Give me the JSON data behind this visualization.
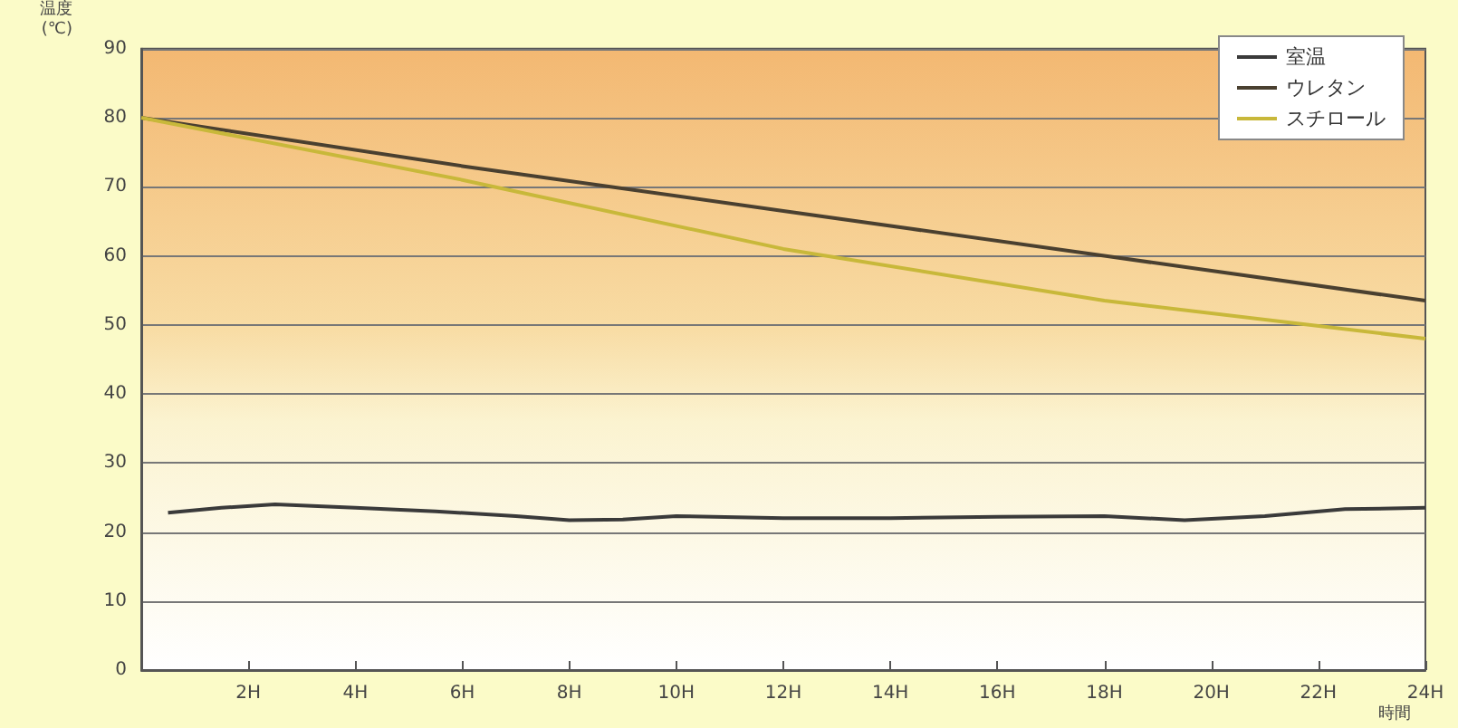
{
  "chart_data": {
    "type": "line",
    "ylabel": "温度\n(℃)",
    "xlabel": "時間",
    "xlim": [
      0,
      24
    ],
    "xticks": [
      {
        "value": 2,
        "label": "2H"
      },
      {
        "value": 4,
        "label": "4H"
      },
      {
        "value": 6,
        "label": "6H"
      },
      {
        "value": 8,
        "label": "8H"
      },
      {
        "value": 10,
        "label": "10H"
      },
      {
        "value": 12,
        "label": "12H"
      },
      {
        "value": 14,
        "label": "14H"
      },
      {
        "value": 16,
        "label": "16H"
      },
      {
        "value": 18,
        "label": "18H"
      },
      {
        "value": 20,
        "label": "20H"
      },
      {
        "value": 22,
        "label": "22H"
      },
      {
        "value": 24,
        "label": "24H"
      }
    ],
    "ylim": [
      0,
      90
    ],
    "yticks": [
      0,
      10,
      20,
      30,
      40,
      50,
      60,
      70,
      80,
      90
    ],
    "series": [
      {
        "name": "室温",
        "color": "#3a3a3a",
        "x": [
          0.5,
          1.5,
          2.5,
          4,
          5.5,
          7,
          8,
          9,
          10,
          12,
          14,
          16,
          18,
          19.5,
          21,
          22.5,
          24
        ],
        "values": [
          22.8,
          23.5,
          24,
          23.5,
          23,
          22.3,
          21.7,
          21.8,
          22.3,
          22,
          22,
          22.2,
          22.3,
          21.7,
          22.3,
          23.3,
          23.5
        ]
      },
      {
        "name": "ウレタン",
        "color": "#4a4030",
        "x": [
          0,
          6,
          12,
          18,
          24
        ],
        "values": [
          80,
          73,
          66.5,
          60,
          53.5
        ]
      },
      {
        "name": "スチロール",
        "color": "#c8b83a",
        "x": [
          0,
          6,
          12,
          18,
          24
        ],
        "values": [
          80,
          71,
          61,
          53.5,
          48
        ]
      }
    ],
    "grid": "y",
    "legend": "top right",
    "marker": "none",
    "line_style": "solid"
  }
}
